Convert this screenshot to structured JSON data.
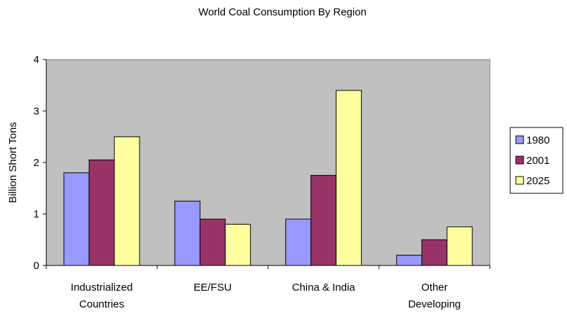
{
  "chart_data": {
    "type": "bar",
    "title": "World Coal Consumption By Region",
    "ylabel": "Billion Short Tons",
    "xlabel": "",
    "ylim": [
      0,
      4
    ],
    "yticks": [
      0,
      1,
      2,
      3,
      4
    ],
    "categories": [
      [
        "Industrialized",
        "Countries"
      ],
      [
        "EE/FSU"
      ],
      [
        "China & India"
      ],
      [
        "Other",
        "Developing"
      ]
    ],
    "series": [
      {
        "name": "1980",
        "color": "#9999ff",
        "values": [
          1.8,
          1.25,
          0.9,
          0.2
        ]
      },
      {
        "name": "2001",
        "color": "#993366",
        "values": [
          2.05,
          0.9,
          1.75,
          0.5
        ]
      },
      {
        "name": "2025",
        "color": "#ffffa0",
        "values": [
          2.5,
          0.8,
          3.4,
          0.75
        ]
      }
    ],
    "plot_background": "#c0c0c0",
    "legend_position": "right"
  }
}
